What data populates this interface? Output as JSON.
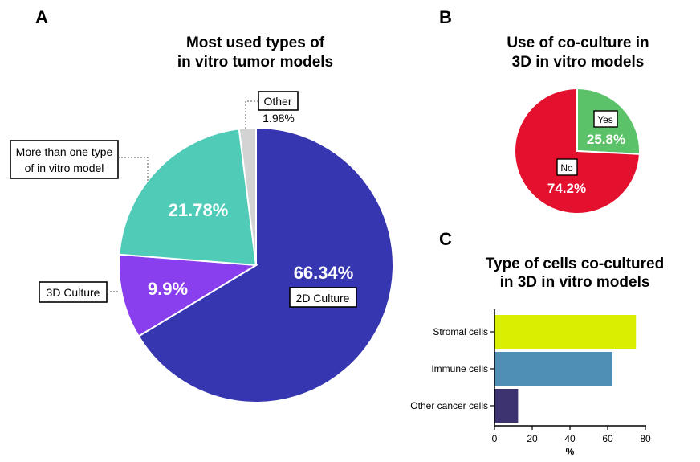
{
  "panels": {
    "a": {
      "letter": "A",
      "title_line1": "Most used types of",
      "title_line2": "in vitro tumor models"
    },
    "b": {
      "letter": "B",
      "title_line1": "Use of co-culture in",
      "title_line2": "3D in vitro models"
    },
    "c": {
      "letter": "C",
      "title_line1": "Type of cells co-cultured",
      "title_line2": "in 3D in vitro models"
    }
  },
  "chart_data": [
    {
      "type": "pie",
      "title": "Most used types of in vitro tumor models",
      "slices": [
        {
          "label": "2D Culture",
          "value": 66.34,
          "value_label": "66.34%",
          "color": "#3636B1"
        },
        {
          "label": "3D Culture",
          "value": 9.9,
          "value_label": "9.9%",
          "color": "#8A3FEF"
        },
        {
          "label_line1": "More than one type",
          "label_line2": "of in vitro model",
          "value": 21.78,
          "value_label": "21.78%",
          "color": "#4FCBB8"
        },
        {
          "label": "Other",
          "value": 1.98,
          "value_label": "1.98%",
          "color": "#D3D3D3"
        }
      ]
    },
    {
      "type": "pie",
      "title": "Use of co-culture in 3D in vitro models",
      "slices": [
        {
          "label": "Yes",
          "value": 25.8,
          "value_label": "25.8%",
          "color": "#5CC26A"
        },
        {
          "label": "No",
          "value": 74.2,
          "value_label": "74.2%",
          "color": "#E3102E"
        }
      ]
    },
    {
      "type": "bar",
      "orientation": "horizontal",
      "title": "Type of cells co-cultured in 3D in vitro models",
      "categories": [
        "Stromal cells",
        "Immune cells",
        "Other cancer cells"
      ],
      "values": [
        75,
        62.5,
        12.5
      ],
      "colors": [
        "#D9EE00",
        "#4F8FB6",
        "#3D3371"
      ],
      "xlabel": "%",
      "xlim": [
        0,
        80
      ],
      "xticks": [
        0,
        20,
        40,
        60,
        80
      ]
    }
  ]
}
